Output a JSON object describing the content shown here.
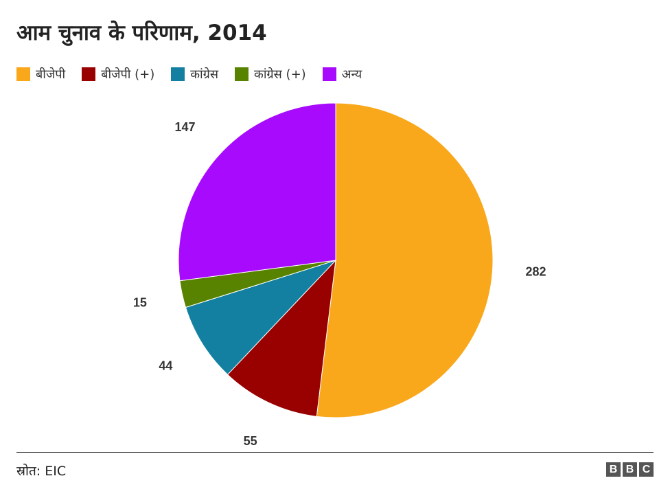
{
  "title": "आम चुनाव के परिणाम, 2014",
  "source": "स्रोत: EIC",
  "logo": [
    "B",
    "B",
    "C"
  ],
  "chart_data": {
    "type": "pie",
    "title": "आम चुनाव के परिणाम, 2014",
    "legend_position": "top-left",
    "start_angle_deg": 0,
    "direction": "clockwise",
    "slices": [
      {
        "label": "बीजेपी",
        "value": 282,
        "color": "#f9a81c"
      },
      {
        "label": "बीजेपी (+)",
        "value": 55,
        "color": "#990000"
      },
      {
        "label": "कांग्रेस",
        "value": 44,
        "color": "#1380a1"
      },
      {
        "label": "कांग्रेस (+)",
        "value": 15,
        "color": "#588300"
      },
      {
        "label": "अन्य",
        "value": 147,
        "color": "#a80afe"
      }
    ]
  }
}
